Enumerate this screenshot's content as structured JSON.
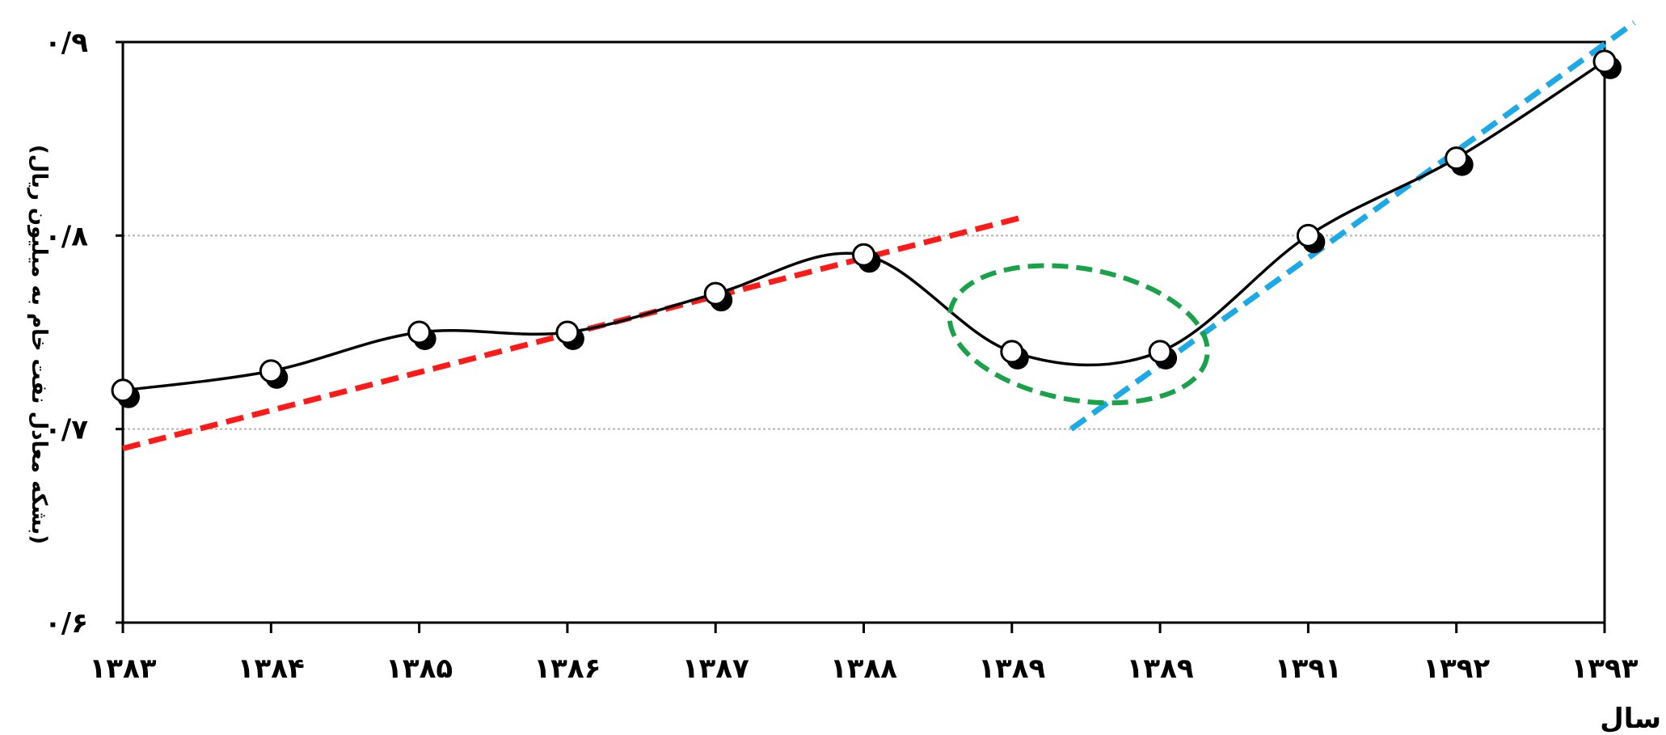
{
  "chart_data": {
    "type": "line",
    "title": "",
    "xlabel": "سال",
    "ylabel": "(بشکه معادل نفت خام به میلیون ریال)",
    "categories": [
      "۱۳۸۳",
      "۱۳۸۴",
      "۱۳۸۵",
      "۱۳۸۶",
      "۱۳۸۷",
      "۱۳۸۸",
      "۱۳۸۹",
      "۱۳۸۹",
      "۱۳۹۱",
      "۱۳۹۲",
      "۱۳۹۳"
    ],
    "y_tick_labels": [
      "۰/۶",
      "۰/۷",
      "۰/۸",
      "۰/۹"
    ],
    "y_ticks": [
      0.6,
      0.7,
      0.8,
      0.9
    ],
    "ylim": [
      0.6,
      0.9
    ],
    "grid": "horizontal dotted at 0.7 and 0.8",
    "series": [
      {
        "values": [
          0.72,
          0.73,
          0.75,
          0.75,
          0.77,
          0.79,
          0.74,
          0.74,
          0.8,
          0.84,
          0.89
        ],
        "color": "#000000",
        "marker": "white circle with black shadow",
        "smooth": true
      }
    ],
    "annotations": [
      {
        "type": "trend-line",
        "color": "#ff1a1a",
        "style": "dashed",
        "from": {
          "x": 0,
          "y": 0.69
        },
        "to": {
          "x": 6.1,
          "y": 0.81
        }
      },
      {
        "type": "trend-line",
        "color": "#1ba9e8",
        "style": "dashed",
        "from": {
          "x": 6.4,
          "y": 0.7
        },
        "to": {
          "x": 10.2,
          "y": 0.91
        }
      },
      {
        "type": "ellipse",
        "color": "#1aa24a",
        "style": "dashed",
        "center": {
          "x": 6.45,
          "y": 0.749
        },
        "rx_units": 0.88,
        "ry_units": 0.034
      }
    ]
  }
}
